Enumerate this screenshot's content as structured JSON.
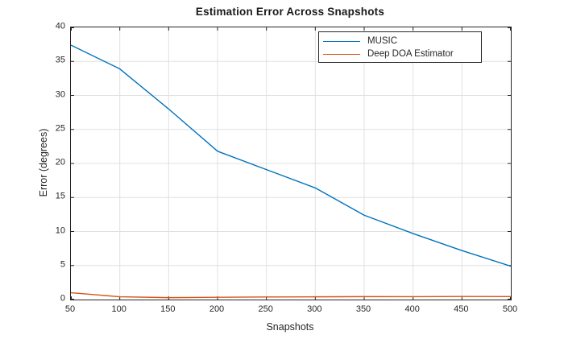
{
  "window": {
    "background": "#ffffff"
  },
  "chart_data": {
    "type": "line",
    "title": "Estimation Error Across Snapshots",
    "xlabel": "Snapshots",
    "ylabel": "Error (degrees)",
    "xlim": [
      50,
      500
    ],
    "ylim": [
      0,
      40
    ],
    "xticks": [
      50,
      100,
      150,
      200,
      250,
      300,
      350,
      400,
      450,
      500
    ],
    "yticks": [
      0,
      5,
      10,
      15,
      20,
      25,
      30,
      35,
      40
    ],
    "grid": true,
    "legend_position": "top-right",
    "x": [
      50,
      100,
      150,
      200,
      250,
      300,
      350,
      400,
      450,
      500
    ],
    "series": [
      {
        "name": "MUSIC",
        "color": "#0072BD",
        "values": [
          37.4,
          33.9,
          28.0,
          21.8,
          19.1,
          16.4,
          12.4,
          9.7,
          7.2,
          4.9
        ]
      },
      {
        "name": "Deep DOA Estimator",
        "color": "#D95319",
        "values": [
          1.0,
          0.41,
          0.28,
          0.33,
          0.38,
          0.4,
          0.43,
          0.42,
          0.45,
          0.44
        ]
      }
    ]
  },
  "colors": {
    "axis": "#262626",
    "grid": "#e0e0e0",
    "tick_label": "#262626",
    "title": "#1a1a1a",
    "legend_border": "#262626",
    "legend_background": "#ffffff"
  }
}
